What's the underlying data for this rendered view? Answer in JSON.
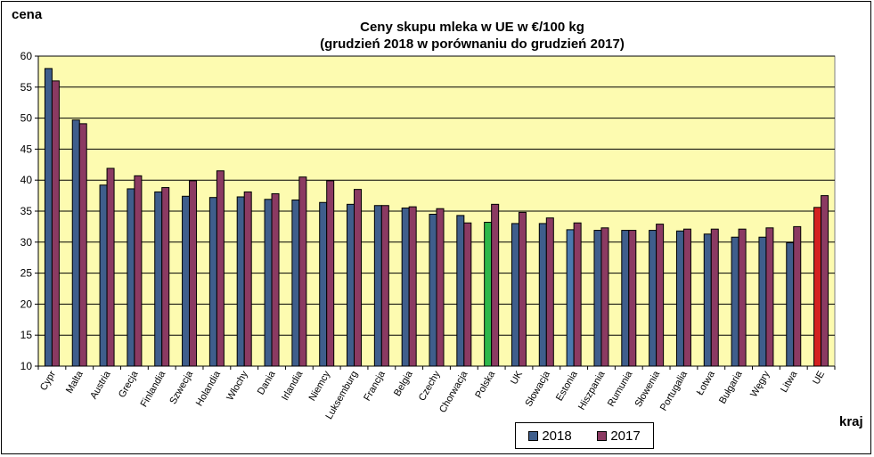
{
  "chart_data": {
    "type": "bar",
    "title": "Ceny skupu mleka  w UE w €/100 kg",
    "subtitle": "(grudzień 2018 w porównaniu do grudzień 2017)",
    "ylabel": "cena",
    "xlabel": "kraj",
    "ylim": [
      10,
      60
    ],
    "yticks": [
      10,
      15,
      20,
      25,
      30,
      35,
      40,
      45,
      50,
      55,
      60
    ],
    "grid": true,
    "legend_position": "bottom-right",
    "categories": [
      "Cypr",
      "Malta",
      "Austria",
      "Grecja",
      "Finlandia",
      "Szwecja",
      "Holandia",
      "Włochy",
      "Dania",
      "Irlandia",
      "Niemcy",
      "Luksemburg",
      "Francja",
      "Belgia",
      "Czechy",
      "Chorwacja",
      "Polska",
      "UK",
      "Słowacja",
      "Estonia",
      "Hiszpania",
      "Rumunia",
      "Słowenia",
      "Portugalia",
      "Łotwa",
      "Bułgaria",
      "Węgry",
      "Litwa",
      "UE"
    ],
    "series": [
      {
        "name": "2018",
        "color": "#3f5e8c",
        "values": [
          58.0,
          49.7,
          39.2,
          38.6,
          38.1,
          37.4,
          37.2,
          37.3,
          36.9,
          36.8,
          36.4,
          36.1,
          35.9,
          35.5,
          34.5,
          34.3,
          33.2,
          33.0,
          33.0,
          32.0,
          31.9,
          31.9,
          31.9,
          31.8,
          31.3,
          30.8,
          30.8,
          29.9,
          35.6
        ],
        "highlights": {
          "16": "#2eb84a",
          "19": "#4a79b0",
          "28": "#d42020"
        }
      },
      {
        "name": "2017",
        "color": "#8b3a62",
        "values": [
          56.0,
          49.1,
          41.9,
          40.7,
          38.8,
          39.9,
          41.5,
          38.1,
          37.8,
          40.5,
          39.9,
          38.5,
          35.9,
          35.7,
          35.4,
          33.1,
          36.1,
          34.8,
          33.9,
          33.1,
          32.3,
          31.9,
          32.9,
          32.1,
          32.1,
          32.1,
          32.3,
          32.5,
          37.5
        ]
      }
    ]
  },
  "colors": {
    "plot_background": "#fdfbb0",
    "grid": "#000000"
  }
}
